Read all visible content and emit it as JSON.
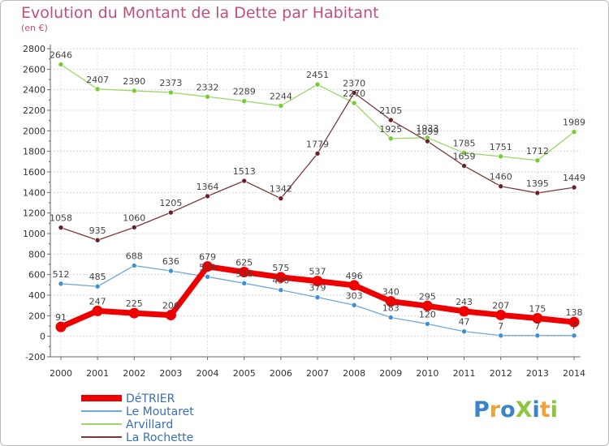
{
  "title": "Evolution du Montant de la Dette par Habitant",
  "subtitle": "(en €)",
  "logo": {
    "text": "ProXiti",
    "letters": [
      {
        "ch": "P",
        "color": "#3a84c8"
      },
      {
        "ch": "r",
        "color": "#f0a23a"
      },
      {
        "ch": "o",
        "color": "#3a84c8"
      },
      {
        "ch": "X",
        "color": "#8cc63e"
      },
      {
        "ch": "i",
        "color": "#3a84c8"
      },
      {
        "ch": "t",
        "color": "#f0a23a"
      },
      {
        "ch": "i",
        "color": "#8cc63e"
      }
    ]
  },
  "chart_data": {
    "type": "line",
    "x": [
      2000,
      2001,
      2002,
      2003,
      2004,
      2005,
      2006,
      2007,
      2008,
      2009,
      2010,
      2011,
      2012,
      2013,
      2014
    ],
    "ylim": [
      -200,
      2800
    ],
    "yticks": [
      -200,
      0,
      200,
      400,
      600,
      800,
      1000,
      1200,
      1400,
      1600,
      1800,
      2000,
      2200,
      2400,
      2600,
      2800
    ],
    "grid": true,
    "legend_position": "bottom-left",
    "series": [
      {
        "name": "DéTRIER",
        "color": "#ee0000",
        "markerColor": "#ee0000",
        "width": 7,
        "values": [
          91,
          247,
          225,
          206,
          679,
          625,
          575,
          537,
          496,
          340,
          295,
          243,
          207,
          175,
          138
        ],
        "labels": [
          "91",
          "247",
          "225",
          "206",
          "679",
          "625",
          "575",
          "537",
          "496",
          "340",
          "295",
          "243",
          "207",
          "175",
          "138"
        ]
      },
      {
        "name": "Le Moutaret",
        "color": "#6ea7d8",
        "markerColor": "#3d8fd6",
        "width": 1.3,
        "values": [
          512,
          485,
          688,
          636,
          579,
          516,
          450,
          379,
          303,
          183,
          120,
          47,
          7,
          7,
          7
        ],
        "labels": [
          "512",
          "485",
          "688",
          "636",
          "579",
          "516",
          "450",
          "379",
          "303",
          "183",
          "120",
          "47",
          "7",
          "7",
          "7"
        ]
      },
      {
        "name": "Arvillard",
        "color": "#9ad86a",
        "markerColor": "#77cc33",
        "width": 1.3,
        "values": [
          2646,
          2407,
          2390,
          2373,
          2332,
          2289,
          2244,
          2451,
          2270,
          1925,
          1933,
          1785,
          1751,
          1712,
          1989
        ],
        "labels": [
          "2646",
          "2407",
          "2390",
          "2373",
          "2332",
          "2289",
          "2244",
          "2451",
          "2270",
          "1925",
          "1933",
          "1785",
          "1751",
          "1712",
          "1989"
        ]
      },
      {
        "name": "La Rochette",
        "color": "#7a3a3a",
        "markerColor": "#6b1f2a",
        "width": 1.3,
        "values": [
          1058,
          935,
          1060,
          1205,
          1364,
          1513,
          1342,
          1779,
          2370,
          2105,
          1899,
          1659,
          1460,
          1395,
          1449
        ],
        "labels": [
          "1058",
          "935",
          "1060",
          "1205",
          "1364",
          "1513",
          "1342",
          "1779",
          "2370",
          "2105",
          "1899",
          "1659",
          "1460",
          "1395",
          "1449"
        ]
      }
    ]
  }
}
